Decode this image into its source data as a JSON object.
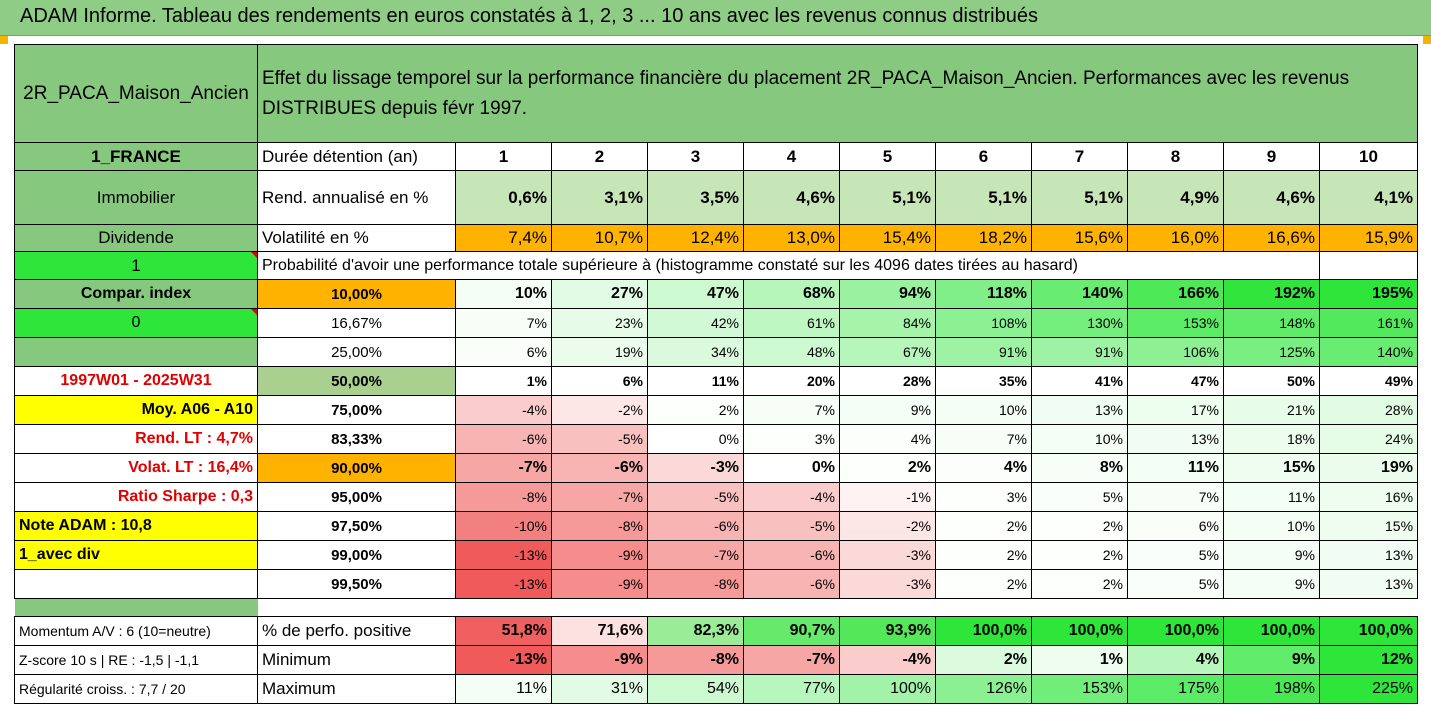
{
  "title": "ADAM Informe. Tableau des rendements en euros constatés à 1, 2, 3 ... 10 ans avec les revenus connus distribués",
  "header": {
    "name": "2R_PACA_Maison_Ancien",
    "description": "Effet du lissage temporel sur la performance financière du placement 2R_PACA_Maison_Ancien. Performances avec les revenus DISTRIBUES depuis févr 1997."
  },
  "left_labels": {
    "country": "1_FRANCE",
    "category": "Immobilier",
    "dividend": "Dividende",
    "one": "1",
    "compar": "Compar. index",
    "zero": "0",
    "period": "1997W01 - 2025W31",
    "moy": "Moy. A06 - A10",
    "rend_lt": "Rend. LT :   4,7%",
    "volat_lt": "Volat. LT :   16,4%",
    "sharpe": "Ratio Sharpe :   0,3",
    "note": "Note ADAM : 10,8",
    "avec_div": "1_avec div"
  },
  "years_label": "Durée détention (an)",
  "years": [
    "1",
    "2",
    "3",
    "4",
    "5",
    "6",
    "7",
    "8",
    "9",
    "10"
  ],
  "rend": {
    "label": "Rend. annualisé en %",
    "values": [
      "0,6%",
      "3,1%",
      "3,5%",
      "4,6%",
      "5,1%",
      "5,1%",
      "5,1%",
      "4,9%",
      "4,6%",
      "4,1%"
    ]
  },
  "vol": {
    "label": "Volatilité en %",
    "values": [
      "7,4%",
      "10,7%",
      "12,4%",
      "13,0%",
      "15,4%",
      "18,2%",
      "15,6%",
      "16,0%",
      "16,6%",
      "15,9%"
    ]
  },
  "prob_header": "Probabilité d'avoir une performance totale supérieure à (histogramme constaté sur les 4096 dates tirées au hasard)",
  "quantiles": [
    {
      "p": "10,00%",
      "vals": [
        "10%",
        "27%",
        "47%",
        "68%",
        "94%",
        "118%",
        "140%",
        "166%",
        "192%",
        "195%"
      ],
      "nums": [
        10,
        27,
        47,
        68,
        94,
        118,
        140,
        166,
        192,
        195
      ]
    },
    {
      "p": "16,67%",
      "vals": [
        "7%",
        "23%",
        "42%",
        "61%",
        "84%",
        "108%",
        "130%",
        "153%",
        "148%",
        "161%"
      ],
      "nums": [
        7,
        23,
        42,
        61,
        84,
        108,
        130,
        153,
        148,
        161
      ]
    },
    {
      "p": "25,00%",
      "vals": [
        "6%",
        "19%",
        "34%",
        "48%",
        "67%",
        "91%",
        "91%",
        "106%",
        "125%",
        "140%"
      ],
      "nums": [
        6,
        19,
        34,
        48,
        67,
        91,
        91,
        106,
        125,
        140
      ]
    },
    {
      "p": "50,00%",
      "vals": [
        "1%",
        "6%",
        "11%",
        "20%",
        "28%",
        "35%",
        "41%",
        "47%",
        "50%",
        "49%"
      ],
      "nums": [
        1,
        6,
        11,
        20,
        28,
        35,
        41,
        47,
        50,
        49
      ]
    },
    {
      "p": "75,00%",
      "vals": [
        "-4%",
        "-2%",
        "2%",
        "7%",
        "9%",
        "10%",
        "13%",
        "17%",
        "21%",
        "28%"
      ],
      "nums": [
        -4,
        -2,
        2,
        7,
        9,
        10,
        13,
        17,
        21,
        28
      ]
    },
    {
      "p": "83,33%",
      "vals": [
        "-6%",
        "-5%",
        "0%",
        "3%",
        "4%",
        "7%",
        "10%",
        "13%",
        "18%",
        "24%"
      ],
      "nums": [
        -6,
        -5,
        0,
        3,
        4,
        7,
        10,
        13,
        18,
        24
      ]
    },
    {
      "p": "90,00%",
      "vals": [
        "-7%",
        "-6%",
        "-3%",
        "0%",
        "2%",
        "4%",
        "8%",
        "11%",
        "15%",
        "19%"
      ],
      "nums": [
        -7,
        -6,
        -3,
        0,
        2,
        4,
        8,
        11,
        15,
        19
      ]
    },
    {
      "p": "95,00%",
      "vals": [
        "-8%",
        "-7%",
        "-5%",
        "-4%",
        "-1%",
        "3%",
        "5%",
        "7%",
        "11%",
        "16%"
      ],
      "nums": [
        -8,
        -7,
        -5,
        -4,
        -1,
        3,
        5,
        7,
        11,
        16
      ]
    },
    {
      "p": "97,50%",
      "vals": [
        "-10%",
        "-8%",
        "-6%",
        "-5%",
        "-2%",
        "2%",
        "2%",
        "6%",
        "10%",
        "15%"
      ],
      "nums": [
        -10,
        -8,
        -6,
        -5,
        -2,
        2,
        2,
        6,
        10,
        15
      ]
    },
    {
      "p": "99,00%",
      "vals": [
        "-13%",
        "-9%",
        "-7%",
        "-6%",
        "-3%",
        "2%",
        "2%",
        "5%",
        "9%",
        "13%"
      ],
      "nums": [
        -13,
        -9,
        -7,
        -6,
        -3,
        2,
        2,
        5,
        9,
        13
      ]
    },
    {
      "p": "99,50%",
      "vals": [
        "-13%",
        "-9%",
        "-8%",
        "-6%",
        "-3%",
        "2%",
        "2%",
        "5%",
        "9%",
        "13%"
      ],
      "nums": [
        -13,
        -9,
        -8,
        -6,
        -3,
        2,
        2,
        5,
        9,
        13
      ]
    }
  ],
  "stats": [
    {
      "left": "Momentum A/V : 6 (10=neutre)",
      "label": "% de perfo. positive",
      "vals": [
        "51,8%",
        "71,6%",
        "82,3%",
        "90,7%",
        "93,9%",
        "100,0%",
        "100,0%",
        "100,0%",
        "100,0%",
        "100,0%"
      ],
      "nums": [
        51.8,
        71.6,
        82.3,
        90.7,
        93.9,
        100,
        100,
        100,
        100,
        100
      ]
    },
    {
      "left": "Z-score 10 s  |  RE : -1,5  |  -1,1",
      "label": "Minimum",
      "vals": [
        "-13%",
        "-9%",
        "-8%",
        "-7%",
        "-4%",
        "2%",
        "1%",
        "4%",
        "9%",
        "12%"
      ],
      "nums": [
        -13,
        -9,
        -8,
        -7,
        -4,
        2,
        1,
        4,
        9,
        12
      ]
    },
    {
      "left": "Régularité croiss. : 7,7 / 20",
      "label": "Maximum",
      "vals": [
        "11%",
        "31%",
        "54%",
        "77%",
        "100%",
        "126%",
        "153%",
        "175%",
        "198%",
        "225%"
      ],
      "nums": [
        11,
        31,
        54,
        77,
        100,
        126,
        153,
        175,
        198,
        225
      ]
    }
  ],
  "colors": {
    "header_green": "#86c97e",
    "bright_green": "#2ee53a",
    "yellow": "#ffff00",
    "orange": "#ffb300",
    "red_text": "#e00000",
    "light_green": "#c6e6b8"
  }
}
